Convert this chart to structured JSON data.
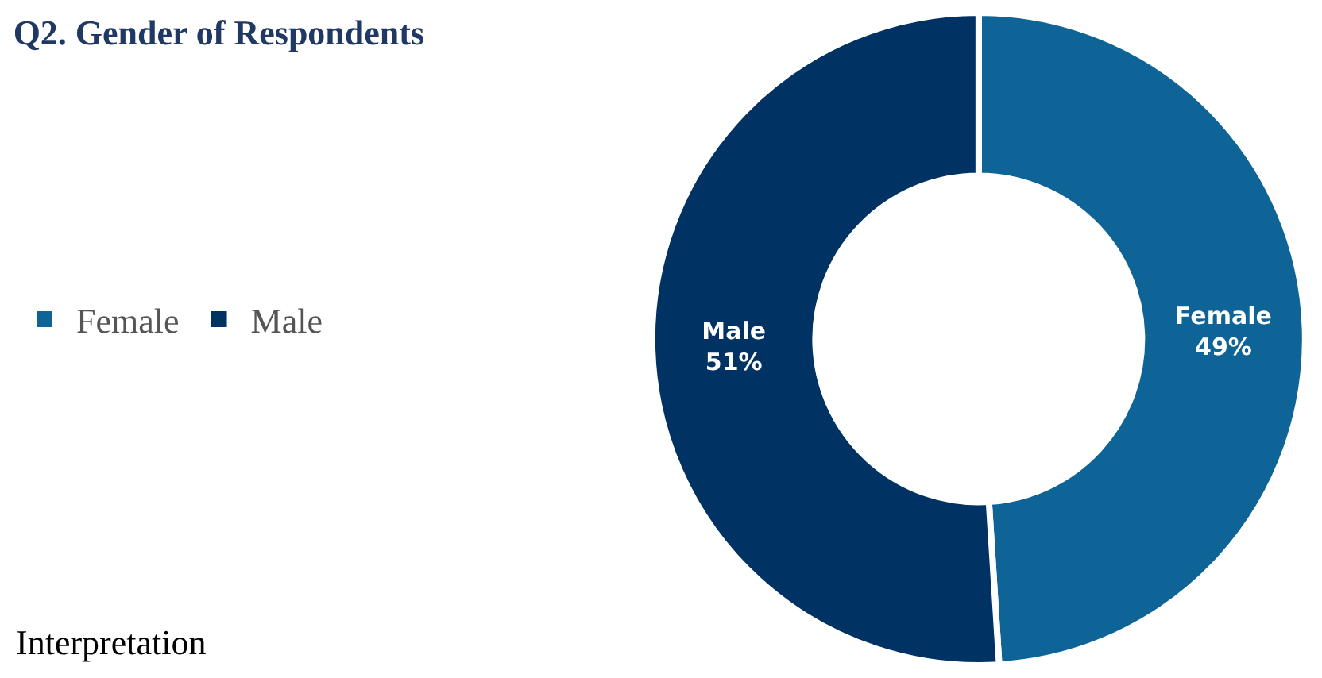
{
  "chart_data": {
    "type": "donut",
    "title": "Q2. Gender of Respondents",
    "categories": [
      "Female",
      "Male"
    ],
    "values": [
      49,
      51
    ],
    "value_labels": [
      "49%",
      "51%"
    ],
    "colors": [
      "#0e6496",
      "#003263"
    ],
    "legend": "left",
    "annotations": [
      "Interpretation"
    ]
  }
}
